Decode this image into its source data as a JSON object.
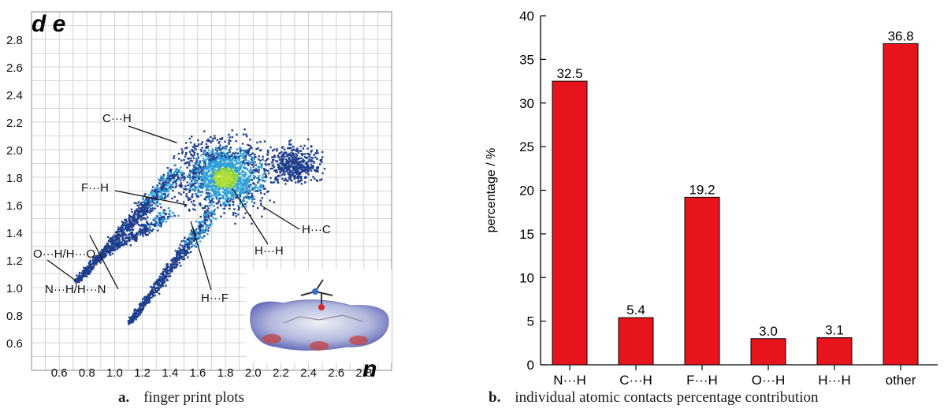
{
  "chart_data": [
    {
      "type": "scatter",
      "subtype": "hirshfeld-fingerprint-plot",
      "tag": "a.",
      "caption": "finger print plots",
      "x_ticks": [
        "0.6",
        "0.8",
        "1.0",
        "1.2",
        "1.4",
        "1.6",
        "1.8",
        "2.0",
        "2.2",
        "2.4",
        "2.6",
        "2.8"
      ],
      "y_ticks": [
        "2.8",
        "2.6",
        "2.4",
        "2.2",
        "2.0",
        "1.8",
        "1.6",
        "1.4",
        "1.2",
        "1.0",
        "0.8",
        "0.6"
      ],
      "xlim": [
        0.4,
        3.0
      ],
      "ylim": [
        0.4,
        3.0
      ],
      "grid": true,
      "corner_text_top": "d e",
      "corner_text_bottom": "n",
      "annotations": [
        {
          "text": "C···H",
          "point": [
            1.45,
            2.05
          ]
        },
        {
          "text": "F···H",
          "point": [
            1.52,
            1.6
          ]
        },
        {
          "text": "H···C",
          "point": [
            2.05,
            1.6
          ]
        },
        {
          "text": "H···H",
          "point": [
            1.85,
            1.72
          ]
        },
        {
          "text": "O···H/H···O",
          "point": [
            0.72,
            1.05
          ]
        },
        {
          "text": "N···H/H···N",
          "point": [
            0.82,
            1.38
          ]
        },
        {
          "text": "H···F",
          "point": [
            1.55,
            1.48
          ]
        }
      ],
      "inset": "hirshfeld-surface",
      "colors": {
        "low": "#1e3e8c",
        "mid": "#2fa0d8",
        "high": "#8ad245",
        "peak": "#b8e03a"
      }
    },
    {
      "type": "bar",
      "tag": "b.",
      "caption": "individual atomic contacts percentage contribution",
      "categories": [
        "N···H",
        "C···H",
        "F···H",
        "O···H",
        "H···H",
        "other"
      ],
      "values": [
        32.5,
        5.4,
        19.2,
        3.0,
        3.1,
        36.8
      ],
      "labels": [
        "32.5",
        "5.4",
        "19.2",
        "3.0",
        "3.1",
        "36.8"
      ],
      "ylabel": "percentage / %",
      "ylim": [
        0,
        40
      ],
      "y_ticks": [
        0,
        5,
        10,
        15,
        20,
        25,
        30,
        35,
        40
      ],
      "grid": false,
      "colors": {
        "bar": "#e8141c",
        "outline": "#000000"
      }
    }
  ]
}
